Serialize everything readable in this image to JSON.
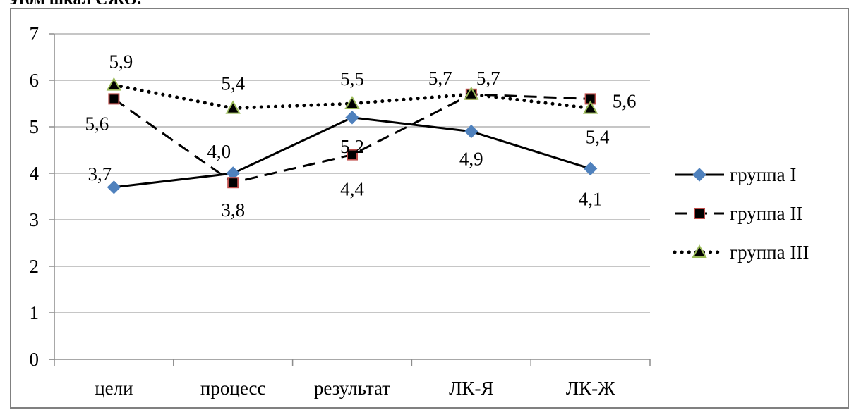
{
  "page_fragment": "этом шкал СЖО.",
  "chart_data": {
    "type": "line",
    "categories": [
      "цели",
      "процесс",
      "результат",
      "ЛК-Я",
      "ЛК-Ж"
    ],
    "y_ticks": [
      "0",
      "1",
      "2",
      "3",
      "4",
      "5",
      "6",
      "7"
    ],
    "ylim": [
      0,
      7
    ],
    "grid": true,
    "legend_position": "right",
    "series": [
      {
        "name": "группа I",
        "values": [
          3.7,
          4.0,
          5.2,
          4.9,
          4.1
        ],
        "labels": [
          "3,7",
          "4,0",
          "5,2",
          "4,9",
          "4,1"
        ],
        "line_color": "#000000",
        "marker": "diamond",
        "marker_color": "#4F81BD",
        "dash": "solid"
      },
      {
        "name": "группа II",
        "values": [
          5.6,
          3.8,
          4.4,
          5.7,
          5.6
        ],
        "labels": [
          "5,6",
          "3,8",
          "4,4",
          "5,7",
          "5,6"
        ],
        "line_color": "#000000",
        "marker": "square",
        "marker_color": "#000000",
        "marker_stroke": "#C0504D",
        "dash": "dashed"
      },
      {
        "name": "группа III",
        "values": [
          5.9,
          5.4,
          5.5,
          5.7,
          5.4
        ],
        "labels": [
          "5,9",
          "5,4",
          "5,5",
          "5,7",
          "5,4"
        ],
        "line_color": "#000000",
        "marker": "triangle",
        "marker_color": "#000000",
        "marker_stroke": "#9BBB59",
        "dash": "dotted"
      }
    ]
  }
}
